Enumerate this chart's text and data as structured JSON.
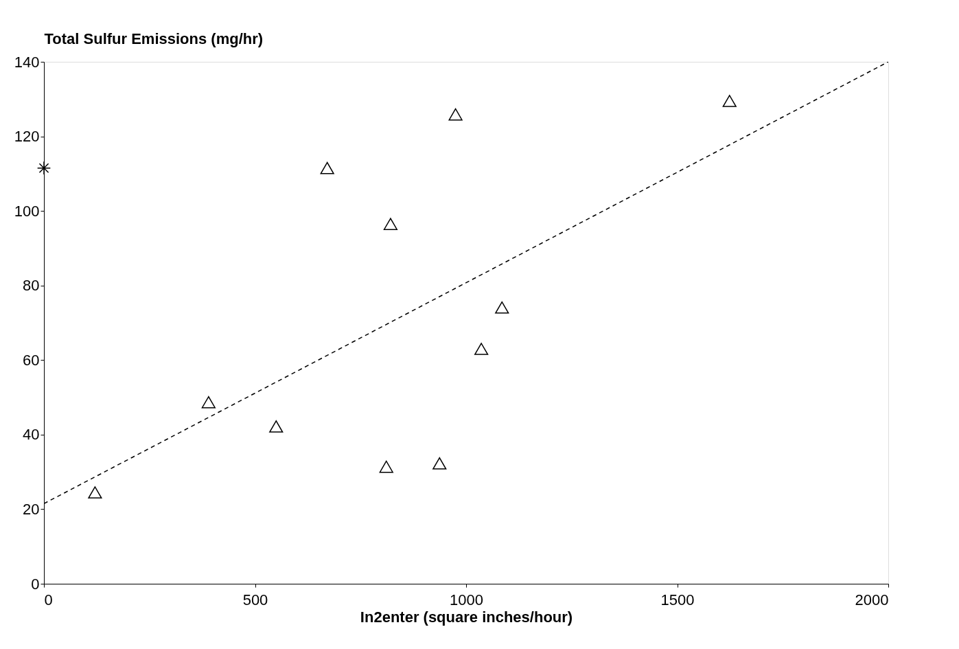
{
  "chart_data": {
    "type": "scatter",
    "xlabel": "In2enter (square inches/hour)",
    "ylabel": "Total Sulfur Emissions (mg/hr)",
    "xlim": [
      0,
      2000
    ],
    "xticks": [
      0,
      500,
      1000,
      1500,
      2000
    ],
    "ylim": [
      0,
      140
    ],
    "yticks": [
      0,
      20,
      40,
      60,
      80,
      100,
      120,
      140
    ],
    "grid": false,
    "series": [
      {
        "color": "#000000",
        "marker": "triangle",
        "x": [
          121,
          390,
          550,
          671,
          821,
          811,
          937,
          975,
          1036,
          1085,
          1624
        ],
        "values": [
          24.5,
          48.7,
          42.2,
          111.5,
          96.5,
          31.4,
          32.3,
          125.9,
          63,
          74.1,
          129.5
        ]
      },
      {
        "color": "#000000",
        "marker": "cross",
        "x": [
          0
        ],
        "values": [
          111.5
        ]
      },
      {
        "type": "line",
        "color": "#000000",
        "marker": "none",
        "line_style": "dashed",
        "x": [
          0,
          2000
        ],
        "values": [
          21.5,
          140
        ]
      }
    ]
  }
}
